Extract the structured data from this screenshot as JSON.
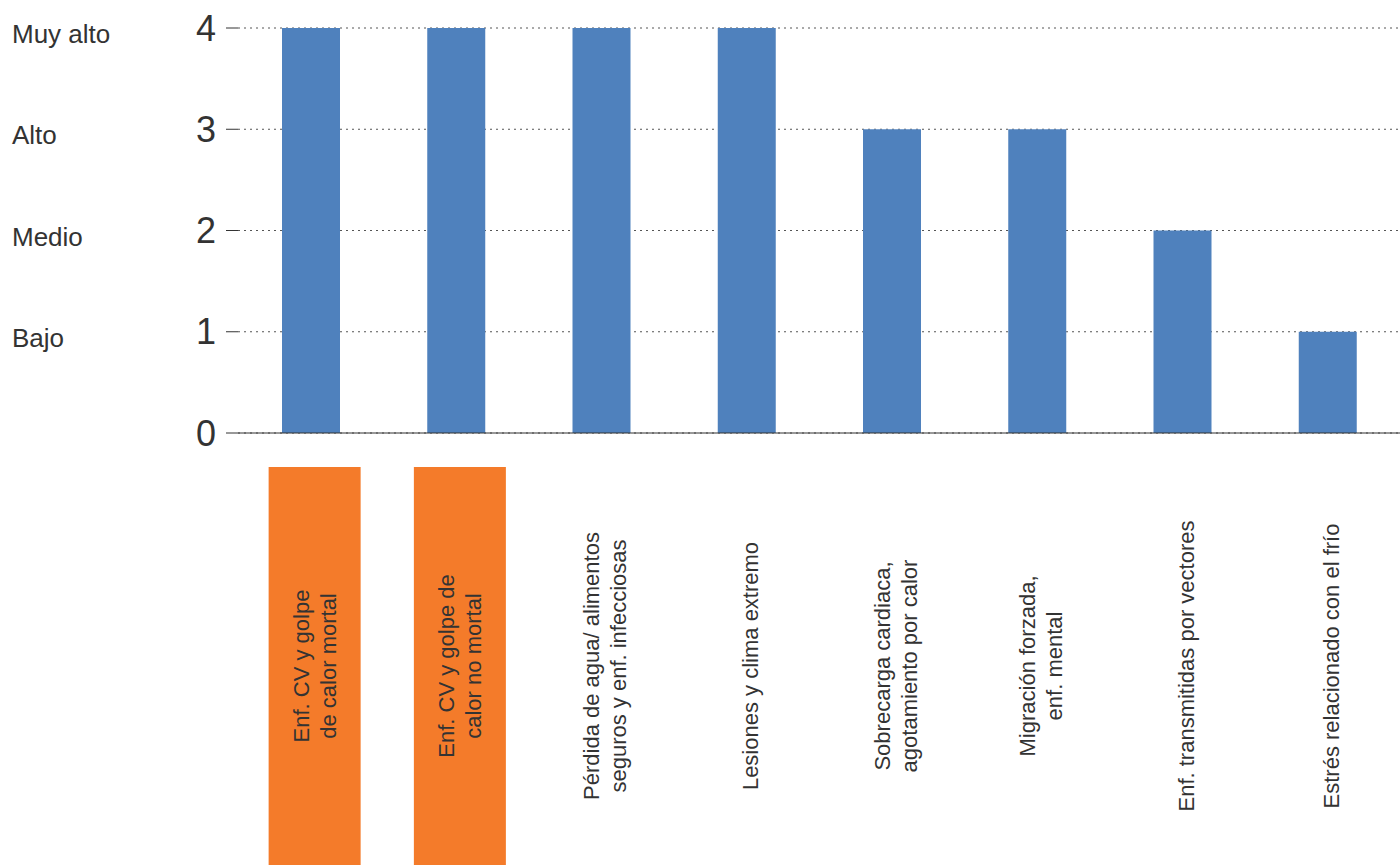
{
  "chart_data": {
    "type": "bar",
    "categories": [
      "Enf. CV y golpe de calor mortal",
      "Enf. CV y golpe de calor no mortal",
      "Pérdida de agua/ alimentos seguros y enf. infecciosas",
      "Lesiones y clima extremo",
      "Sobrecarga cardiaca, agotamiento por calor",
      "Migración forzada, enf. mental",
      "Enf. transmitidas por vectores",
      "Estrés relacionado con el frío"
    ],
    "values": [
      4,
      4,
      4,
      4,
      3,
      3,
      2,
      1
    ],
    "color": "#4f81bd",
    "ylim": [
      0,
      4
    ],
    "yticks": [
      0,
      1,
      2,
      3,
      4
    ],
    "grid": true,
    "y_level_labels": [
      {
        "value": 4,
        "label": "Muy alto"
      },
      {
        "value": 3,
        "label": "Alto"
      },
      {
        "value": 2,
        "label": "Medio"
      },
      {
        "value": 1,
        "label": "Bajo"
      }
    ]
  }
}
